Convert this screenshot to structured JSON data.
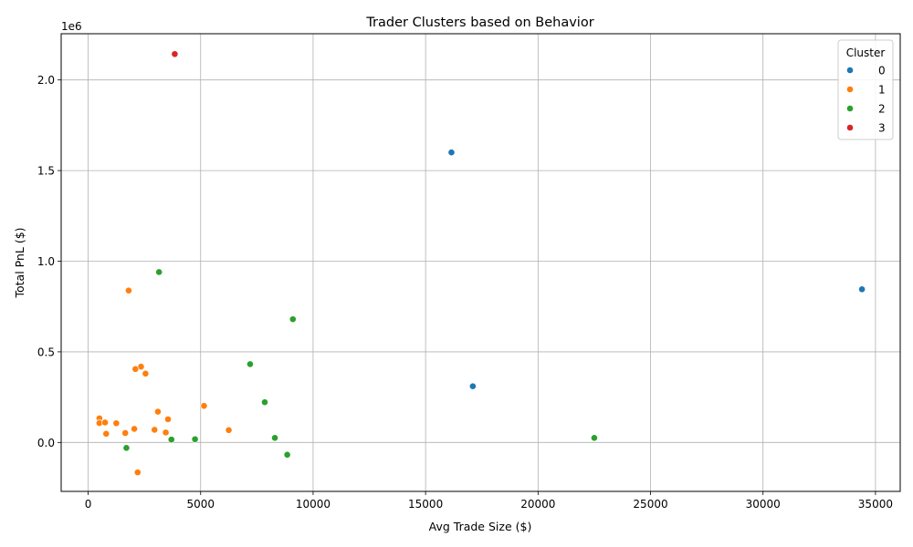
{
  "chart_data": {
    "type": "scatter",
    "title": "Trader Clusters based on Behavior",
    "xlabel": "Avg Trade Size ($)",
    "ylabel": "Total PnL ($)",
    "y_offset_label": "1e6",
    "xlim": [
      -1200,
      36100
    ],
    "ylim": [
      -270000,
      2255000
    ],
    "x_ticks": [
      0,
      5000,
      10000,
      15000,
      20000,
      25000,
      30000,
      35000
    ],
    "x_tick_labels": [
      "0",
      "5000",
      "10000",
      "15000",
      "20000",
      "25000",
      "30000",
      "35000"
    ],
    "y_ticks": [
      0,
      500000,
      1000000,
      1500000,
      2000000
    ],
    "y_tick_labels": [
      "0.0",
      "0.5",
      "1.0",
      "1.5",
      "2.0"
    ],
    "grid": true,
    "legend": {
      "title": "Cluster",
      "position": "top-right"
    },
    "series": [
      {
        "name": "0",
        "color": "#1f77b4",
        "points": [
          [
            16150,
            1600000
          ],
          [
            34400,
            845000
          ],
          [
            17100,
            310000
          ]
        ]
      },
      {
        "name": "1",
        "color": "#ff7f0e",
        "points": [
          [
            1800,
            838000
          ],
          [
            2350,
            418000
          ],
          [
            2100,
            405000
          ],
          [
            2550,
            380000
          ],
          [
            5150,
            202000
          ],
          [
            3100,
            170000
          ],
          [
            500,
            133000
          ],
          [
            3550,
            128000
          ],
          [
            500,
            107000
          ],
          [
            750,
            110000
          ],
          [
            1250,
            106000
          ],
          [
            2050,
            75000
          ],
          [
            6250,
            68000
          ],
          [
            2950,
            70000
          ],
          [
            3450,
            55000
          ],
          [
            1650,
            52000
          ],
          [
            800,
            48000
          ],
          [
            2200,
            -165000
          ]
        ]
      },
      {
        "name": "2",
        "color": "#2ca02c",
        "points": [
          [
            3150,
            940000
          ],
          [
            9100,
            680000
          ],
          [
            7200,
            432000
          ],
          [
            7850,
            222000
          ],
          [
            22500,
            25000
          ],
          [
            8300,
            25000
          ],
          [
            4750,
            18000
          ],
          [
            3700,
            16000
          ],
          [
            1700,
            -30000
          ],
          [
            8850,
            -68000
          ]
        ]
      },
      {
        "name": "3",
        "color": "#d62728",
        "points": [
          [
            3850,
            2143000
          ]
        ]
      }
    ]
  }
}
